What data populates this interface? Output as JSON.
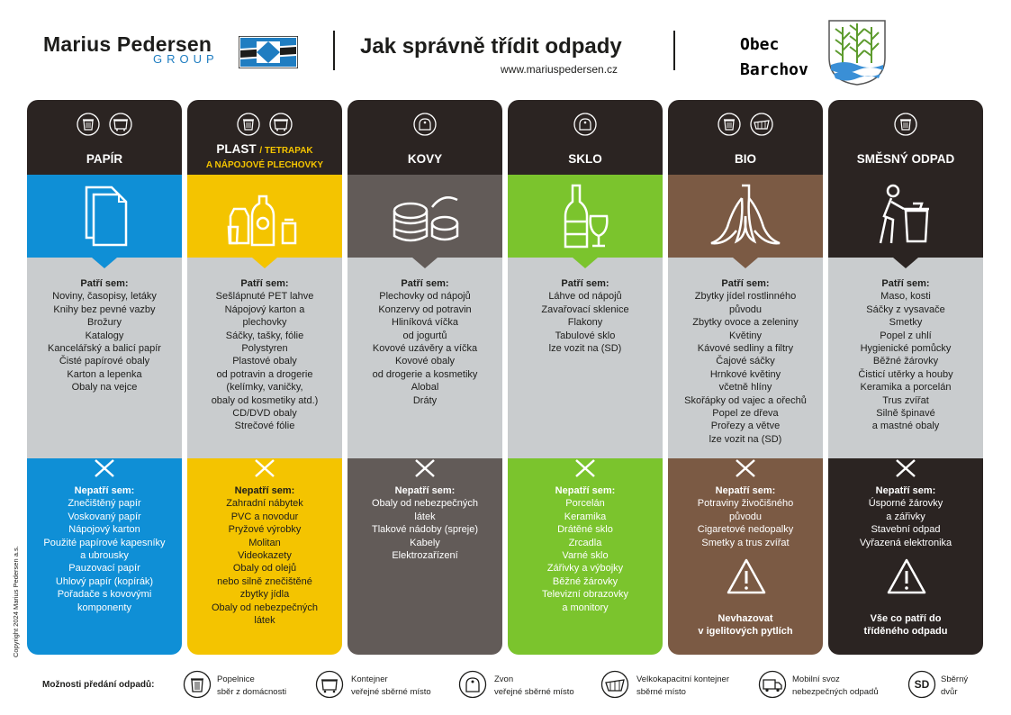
{
  "header": {
    "brand_name": "Marius Pedersen",
    "brand_group": "GROUP",
    "title": "Jak správně třídit odpady",
    "url": "www.mariuspedersen.cz",
    "municipality_line1": "Obec",
    "municipality_line2": "Barchov"
  },
  "colors": {
    "dark": "#2b2422",
    "papir": "#0f8fd6",
    "plast": "#f4c400",
    "kovy": "#625b58",
    "sklo": "#7bc42d",
    "bio": "#7b5a44",
    "smesny": "#2b2422",
    "grey": "#c9ccce"
  },
  "columns": [
    {
      "title": "PAPÍR",
      "icons": [
        "bin-icon",
        "container-icon"
      ],
      "yes_heading": "Patří sem:",
      "yes_items": [
        "Noviny, časopisy, letáky",
        "Knihy bez pevné vazby",
        "Brožury",
        "Katalogy",
        "Kancelářský a balicí papír",
        "Čisté papírové obaly",
        "Karton a lepenka",
        "Obaly na vejce"
      ],
      "no_heading": "Nepatří sem:",
      "no_items": [
        "Znečištěný papír",
        "Voskovaný papír",
        "Nápojový karton",
        "Použité papírové kapesníky",
        "a ubrousky",
        "Pauzovací papír",
        "Uhlový papír (kopírák)",
        "Pořadače s kovovými",
        "komponenty"
      ]
    },
    {
      "title": "PLAST",
      "title_sub1": "/ TETRAPAK",
      "title_sub2": "A NÁPOJOVÉ PLECHOVKY",
      "icons": [
        "bin-icon",
        "container-icon"
      ],
      "yes_heading": "Patří sem:",
      "yes_items": [
        "Sešlápnuté PET lahve",
        "Nápojový karton a",
        "plechovky",
        "Sáčky, tašky, fólie",
        "Polystyren",
        "Plastové obaly",
        "od potravin a drogerie",
        "(kelímky, vaničky,",
        "obaly od kosmetiky atd.)",
        "CD/DVD obaly",
        "Strečové fólie"
      ],
      "no_heading": "Nepatří sem:",
      "no_items": [
        "Zahradní nábytek",
        "PVC a novodur",
        "Pryžové výrobky",
        "Molitan",
        "Videokazety",
        "Obaly od olejů",
        "nebo silně znečištěné",
        "zbytky jídla",
        "Obaly od nebezpečných",
        "látek"
      ]
    },
    {
      "title": "KOVY",
      "icons": [
        "bell-container-icon"
      ],
      "yes_heading": "Patří sem:",
      "yes_items": [
        "Plechovky od nápojů",
        "Konzervy od potravin",
        "Hliníková víčka",
        "od jogurtů",
        "Kovové uzávěry a víčka",
        "Kovové obaly",
        "od drogerie a kosmetiky",
        "Alobal",
        "Dráty"
      ],
      "no_heading": "Nepatří sem:",
      "no_items": [
        "Obaly od nebezpečných",
        "látek",
        "Tlakové nádoby (spreje)",
        "Kabely",
        "Elektrozařízení"
      ]
    },
    {
      "title": "SKLO",
      "icons": [
        "bell-container-icon"
      ],
      "yes_heading": "Patří sem:",
      "yes_items": [
        "Láhve od nápojů",
        "Zavařovací sklenice",
        "Flakony",
        "Tabulové sklo",
        "lze vozit na (SD)"
      ],
      "no_heading": "Nepatří sem:",
      "no_items": [
        "Porcelán",
        "Keramika",
        "Drátěné sklo",
        "Zrcadla",
        "Varné sklo",
        "Zářivky a výbojky",
        "Běžné žárovky",
        "Televizní obrazovky",
        "a monitory"
      ]
    },
    {
      "title": "BIO",
      "icons": [
        "bin-icon",
        "large-container-icon"
      ],
      "yes_heading": "Patří sem:",
      "yes_items": [
        "Zbytky jídel rostlinného",
        "původu",
        "Zbytky ovoce a zeleniny",
        "Květiny",
        "Kávové sedliny a filtry",
        "Čajové sáčky",
        "Hrnkové květiny",
        "včetně hlíny",
        "Skořápky od vajec a ořechů",
        "Popel ze dřeva",
        "Prořezy a větve",
        "lze vozit na (SD)"
      ],
      "no_heading": "Nepatří sem:",
      "no_items": [
        "Potraviny živočišného",
        "původu",
        "Cigaretové nedopalky",
        "Smetky a trus zvířat"
      ],
      "warning_lines": [
        "Nevhazovat",
        "v igelitových pytlích"
      ]
    },
    {
      "title": "SMĚSNÝ ODPAD",
      "icons": [
        "bin-icon"
      ],
      "yes_heading": "Patří sem:",
      "yes_items": [
        "Maso, kosti",
        "Sáčky z vysavače",
        "Smetky",
        "Popel z uhlí",
        "Hygienické pomůcky",
        "Běžné žárovky",
        "Čisticí utěrky a houby",
        "Keramika a porcelán",
        "Trus zvířat",
        "Silně špinavé",
        "a mastné obaly"
      ],
      "no_heading": "Nepatří sem:",
      "no_items": [
        "Úsporné žárovky",
        "a zářivky",
        "Stavební odpad",
        "Vyřazená elektronika"
      ],
      "warning_lines": [
        "Vše co patří do",
        "tříděného odpadu"
      ]
    }
  ],
  "footer": {
    "label": "Možnosti předání odpadů:",
    "items": [
      {
        "icon": "bin-icon",
        "line1": "Popelnice",
        "line2": "sběr z domácnosti"
      },
      {
        "icon": "container-icon",
        "line1": "Kontejner",
        "line2": "veřejné sběrné místo"
      },
      {
        "icon": "bell-container-icon",
        "line1": "Zvon",
        "line2": "veřejné sběrné místo"
      },
      {
        "icon": "large-container-icon",
        "line1": "Velkokapacitní kontejner",
        "line2": "sběrné místo"
      },
      {
        "icon": "truck-icon",
        "line1": "Mobilní svoz",
        "line2": "nebezpečných odpadů"
      },
      {
        "icon": "sd-icon",
        "line1": "Sběrný",
        "line2": "dvůr",
        "badge": "SD"
      }
    ],
    "copyright": "Copyright 2024 Marius Pedersen a.s."
  }
}
